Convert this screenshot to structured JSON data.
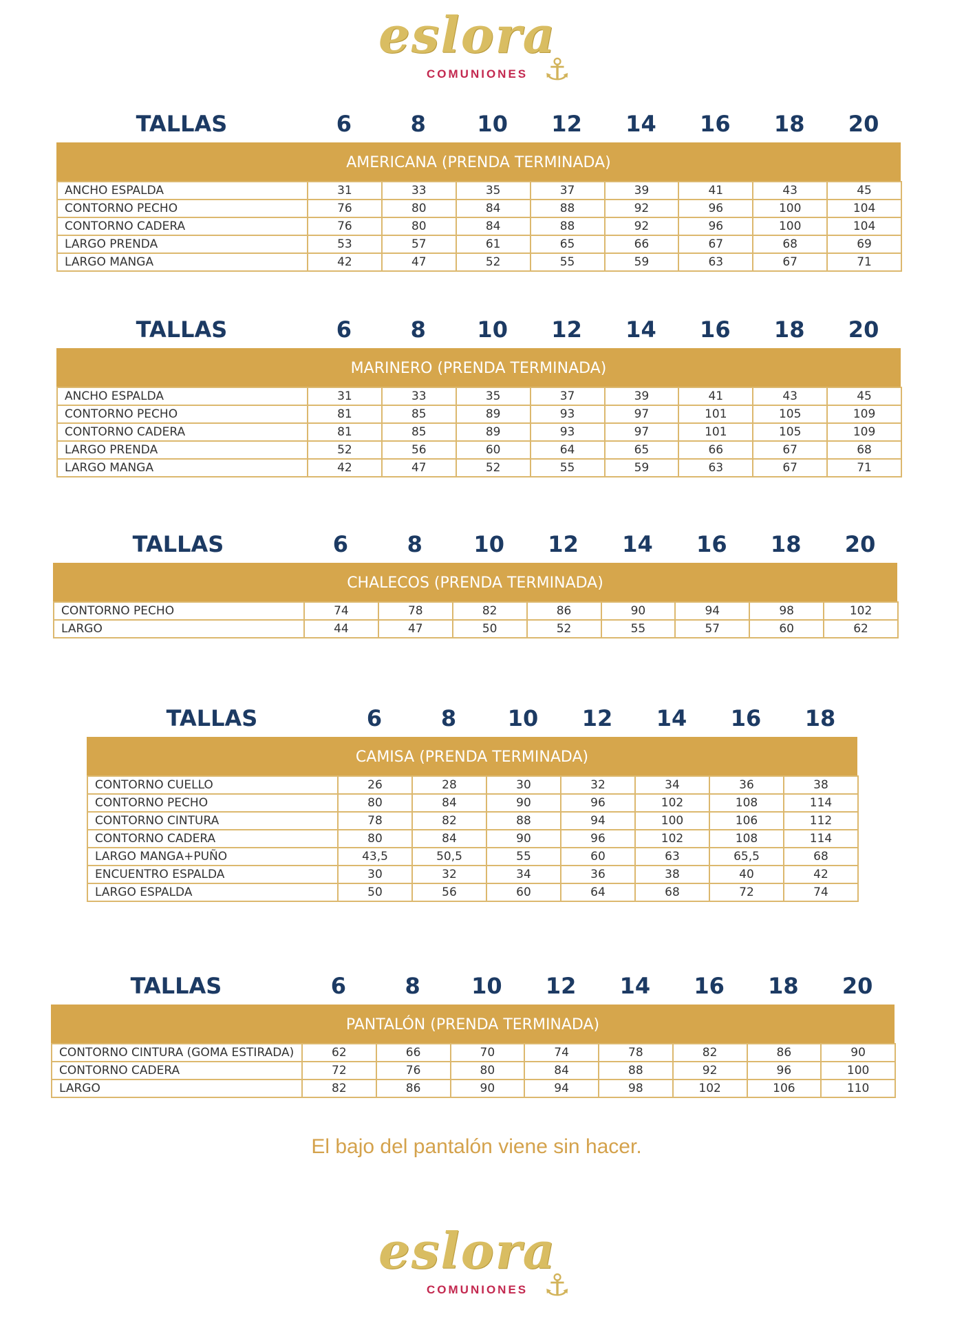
{
  "logo": {
    "word": "eslora",
    "subtitle": "COMUNIONES",
    "icon": "anchor-icon",
    "colors": {
      "rope": "#d9bd62",
      "subtitle": "#c3284f"
    }
  },
  "colors": {
    "band": "#d6a64c",
    "heading": "#1c3a63",
    "note": "#d4a24c"
  },
  "tables": [
    {
      "tallas_label": "TALLAS",
      "sizes": [
        "6",
        "8",
        "10",
        "12",
        "14",
        "16",
        "18",
        "20"
      ],
      "title": "AMERICANA (PRENDA TERMINADA)",
      "rows": [
        {
          "label": "ANCHO ESPALDA",
          "values": [
            "31",
            "33",
            "35",
            "37",
            "39",
            "41",
            "43",
            "45"
          ]
        },
        {
          "label": "CONTORNO PECHO",
          "values": [
            "76",
            "80",
            "84",
            "88",
            "92",
            "96",
            "100",
            "104"
          ]
        },
        {
          "label": "CONTORNO CADERA",
          "values": [
            "76",
            "80",
            "84",
            "88",
            "92",
            "96",
            "100",
            "104"
          ]
        },
        {
          "label": "LARGO PRENDA",
          "values": [
            "53",
            "57",
            "61",
            "65",
            "66",
            "67",
            "68",
            "69"
          ]
        },
        {
          "label": "LARGO MANGA",
          "values": [
            "42",
            "47",
            "52",
            "55",
            "59",
            "63",
            "67",
            "71"
          ]
        }
      ]
    },
    {
      "tallas_label": "TALLAS",
      "sizes": [
        "6",
        "8",
        "10",
        "12",
        "14",
        "16",
        "18",
        "20"
      ],
      "title": "MARINERO (PRENDA TERMINADA)",
      "rows": [
        {
          "label": "ANCHO ESPALDA",
          "values": [
            "31",
            "33",
            "35",
            "37",
            "39",
            "41",
            "43",
            "45"
          ]
        },
        {
          "label": "CONTORNO PECHO",
          "values": [
            "81",
            "85",
            "89",
            "93",
            "97",
            "101",
            "105",
            "109"
          ]
        },
        {
          "label": "CONTORNO CADERA",
          "values": [
            "81",
            "85",
            "89",
            "93",
            "97",
            "101",
            "105",
            "109"
          ]
        },
        {
          "label": "LARGO PRENDA",
          "values": [
            "52",
            "56",
            "60",
            "64",
            "65",
            "66",
            "67",
            "68"
          ]
        },
        {
          "label": "LARGO MANGA",
          "values": [
            "42",
            "47",
            "52",
            "55",
            "59",
            "63",
            "67",
            "71"
          ]
        }
      ]
    },
    {
      "tallas_label": "TALLAS",
      "sizes": [
        "6",
        "8",
        "10",
        "12",
        "14",
        "16",
        "18",
        "20"
      ],
      "title": "CHALECOS (PRENDA TERMINADA)",
      "rows": [
        {
          "label": "CONTORNO PECHO",
          "values": [
            "74",
            "78",
            "82",
            "86",
            "90",
            "94",
            "98",
            "102"
          ]
        },
        {
          "label": "LARGO",
          "values": [
            "44",
            "47",
            "50",
            "52",
            "55",
            "57",
            "60",
            "62"
          ]
        }
      ]
    },
    {
      "tallas_label": "TALLAS",
      "sizes": [
        "6",
        "8",
        "10",
        "12",
        "14",
        "16",
        "18"
      ],
      "title": "CAMISA (PRENDA TERMINADA)",
      "rows": [
        {
          "label": "CONTORNO CUELLO",
          "values": [
            "26",
            "28",
            "30",
            "32",
            "34",
            "36",
            "38"
          ]
        },
        {
          "label": "CONTORNO PECHO",
          "values": [
            "80",
            "84",
            "90",
            "96",
            "102",
            "108",
            "114"
          ]
        },
        {
          "label": "CONTORNO CINTURA",
          "values": [
            "78",
            "82",
            "88",
            "94",
            "100",
            "106",
            "112"
          ]
        },
        {
          "label": "CONTORNO CADERA",
          "values": [
            "80",
            "84",
            "90",
            "96",
            "102",
            "108",
            "114"
          ]
        },
        {
          "label": "LARGO MANGA+PUÑO",
          "values": [
            "43,5",
            "50,5",
            "55",
            "60",
            "63",
            "65,5",
            "68"
          ]
        },
        {
          "label": "ENCUENTRO ESPALDA",
          "values": [
            "30",
            "32",
            "34",
            "36",
            "38",
            "40",
            "42"
          ]
        },
        {
          "label": "LARGO ESPALDA",
          "values": [
            "50",
            "56",
            "60",
            "64",
            "68",
            "72",
            "74"
          ]
        }
      ]
    },
    {
      "tallas_label": "TALLAS",
      "sizes": [
        "6",
        "8",
        "10",
        "12",
        "14",
        "16",
        "18",
        "20"
      ],
      "title": "PANTALÓN (PRENDA TERMINADA)",
      "rows": [
        {
          "label": "CONTORNO CINTURA (GOMA ESTIRADA)",
          "values": [
            "62",
            "66",
            "70",
            "74",
            "78",
            "82",
            "86",
            "90"
          ]
        },
        {
          "label": "CONTORNO CADERA",
          "values": [
            "72",
            "76",
            "80",
            "84",
            "88",
            "92",
            "96",
            "100"
          ]
        },
        {
          "label": "LARGO",
          "values": [
            "82",
            "86",
            "90",
            "94",
            "98",
            "102",
            "106",
            "110"
          ]
        }
      ]
    }
  ],
  "note": "El bajo del pantalón viene sin hacer."
}
